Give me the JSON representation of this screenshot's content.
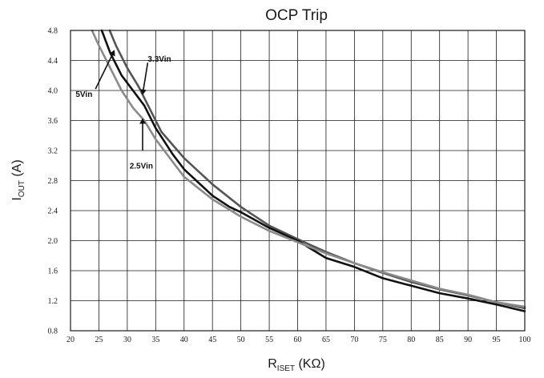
{
  "chart_data": {
    "type": "line",
    "title": "OCP Trip",
    "xlabel": {
      "main": "R",
      "sub": "ISET",
      "unit": " (KΩ)"
    },
    "ylabel": {
      "main": "I",
      "sub": "OUT",
      "unit": " (A)"
    },
    "xlim": [
      20,
      100
    ],
    "ylim": [
      0.8,
      4.8
    ],
    "xticks": [
      20,
      25,
      30,
      35,
      40,
      45,
      50,
      55,
      60,
      65,
      70,
      75,
      80,
      85,
      90,
      95,
      100
    ],
    "yticks": [
      "0.8",
      "1.2",
      "1.6",
      "2.0",
      "2.4",
      "2.8",
      "3.2",
      "3.6",
      "4.0",
      "4.4",
      "4.8"
    ],
    "grid": true,
    "series": [
      {
        "name": "3.3Vin",
        "color": "#555555",
        "points": [
          [
            26.9,
            4.8
          ],
          [
            28,
            4.6
          ],
          [
            30,
            4.3
          ],
          [
            32,
            4.05
          ],
          [
            34,
            3.75
          ],
          [
            36,
            3.45
          ],
          [
            40,
            3.1
          ],
          [
            45,
            2.75
          ],
          [
            50,
            2.45
          ],
          [
            55,
            2.2
          ],
          [
            60,
            2.02
          ],
          [
            65,
            1.85
          ],
          [
            70,
            1.7
          ],
          [
            75,
            1.57
          ],
          [
            80,
            1.45
          ],
          [
            85,
            1.35
          ],
          [
            90,
            1.27
          ],
          [
            95,
            1.18
          ],
          [
            100,
            1.1
          ]
        ]
      },
      {
        "name": "5Vin",
        "color": "#111111",
        "points": [
          [
            25.5,
            4.8
          ],
          [
            27,
            4.5
          ],
          [
            29,
            4.2
          ],
          [
            31,
            4.0
          ],
          [
            33,
            3.8
          ],
          [
            35,
            3.5
          ],
          [
            38,
            3.15
          ],
          [
            40,
            2.95
          ],
          [
            45,
            2.6
          ],
          [
            48,
            2.45
          ],
          [
            50,
            2.38
          ],
          [
            55,
            2.17
          ],
          [
            60,
            2.0
          ],
          [
            65,
            1.77
          ],
          [
            70,
            1.65
          ],
          [
            75,
            1.5
          ],
          [
            80,
            1.4
          ],
          [
            85,
            1.3
          ],
          [
            90,
            1.23
          ],
          [
            95,
            1.15
          ],
          [
            100,
            1.06
          ]
        ]
      },
      {
        "name": "2.5Vin",
        "color": "#8a8a8a",
        "points": [
          [
            23.8,
            4.8
          ],
          [
            25,
            4.6
          ],
          [
            27,
            4.3
          ],
          [
            29,
            4.0
          ],
          [
            31,
            3.77
          ],
          [
            33,
            3.6
          ],
          [
            35,
            3.35
          ],
          [
            38,
            3.05
          ],
          [
            40,
            2.85
          ],
          [
            45,
            2.55
          ],
          [
            50,
            2.32
          ],
          [
            55,
            2.13
          ],
          [
            60,
            1.98
          ],
          [
            65,
            1.83
          ],
          [
            70,
            1.7
          ],
          [
            75,
            1.58
          ],
          [
            80,
            1.47
          ],
          [
            85,
            1.36
          ],
          [
            90,
            1.28
          ],
          [
            95,
            1.18
          ],
          [
            100,
            1.12
          ]
        ]
      }
    ],
    "annotations": [
      {
        "label": "3.3Vin",
        "text_at": [
          33.6,
          4.42
        ],
        "arrow_from": [
          33.6,
          4.37
        ],
        "arrow_to": [
          32.7,
          3.95
        ]
      },
      {
        "label": "5Vin",
        "text_at": [
          20.9,
          3.95
        ],
        "arrow_from": [
          24.4,
          4.02
        ],
        "arrow_to": [
          27.7,
          4.53
        ]
      },
      {
        "label": "2.5Vin",
        "text_at": [
          30.4,
          3.0
        ],
        "arrow_from": [
          32.7,
          3.2
        ],
        "arrow_to": [
          32.7,
          3.62
        ]
      }
    ]
  }
}
